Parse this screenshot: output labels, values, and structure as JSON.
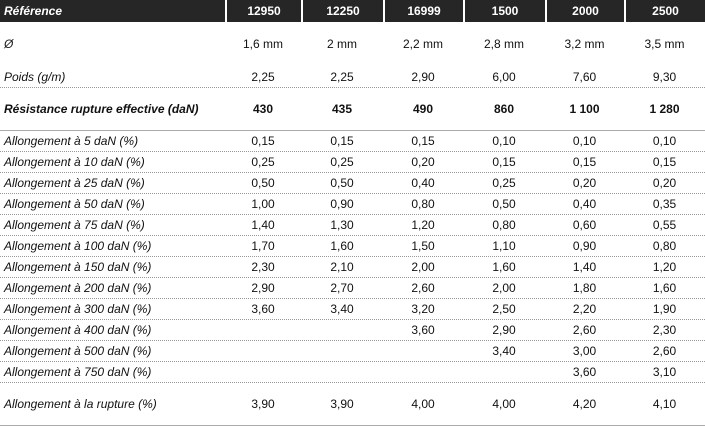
{
  "table": {
    "header": [
      "Référence",
      "12950",
      "12250",
      "16999",
      "1500",
      "2000",
      "2500"
    ],
    "rows": [
      {
        "label": "Ø",
        "values": [
          "1,6 mm",
          "2 mm",
          "2,2 mm",
          "2,8 mm",
          "3,2 mm",
          "3,5 mm"
        ]
      },
      {
        "label": "Poids (g/m)",
        "values": [
          "2,25",
          "2,25",
          "2,90",
          "6,00",
          "7,60",
          "9,30"
        ]
      },
      {
        "label": "Résistance rupture effective (daN)",
        "values": [
          "430",
          "435",
          "490",
          "860",
          "1 100",
          "1 280"
        ],
        "bold": true
      },
      {
        "label": "Allongement à 5 daN (%)",
        "values": [
          "0,15",
          "0,15",
          "0,15",
          "0,10",
          "0,10",
          "0,10"
        ]
      },
      {
        "label": "Allongement à 10 daN (%)",
        "values": [
          "0,25",
          "0,25",
          "0,20",
          "0,15",
          "0,15",
          "0,15"
        ]
      },
      {
        "label": "Allongement à 25 daN (%)",
        "values": [
          "0,50",
          "0,50",
          "0,40",
          "0,25",
          "0,20",
          "0,20"
        ]
      },
      {
        "label": "Allongement à 50 daN (%)",
        "values": [
          "1,00",
          "0,90",
          "0,80",
          "0,50",
          "0,40",
          "0,35"
        ]
      },
      {
        "label": "Allongement à 75 daN (%)",
        "values": [
          "1,40",
          "1,30",
          "1,20",
          "0,80",
          "0,60",
          "0,55"
        ]
      },
      {
        "label": "Allongement à 100 daN (%)",
        "values": [
          "1,70",
          "1,60",
          "1,50",
          "1,10",
          "0,90",
          "0,80"
        ]
      },
      {
        "label": "Allongement à 150 daN (%)",
        "values": [
          "2,30",
          "2,10",
          "2,00",
          "1,60",
          "1,40",
          "1,20"
        ]
      },
      {
        "label": "Allongement à 200 daN (%)",
        "values": [
          "2,90",
          "2,70",
          "2,60",
          "2,00",
          "1,80",
          "1,60"
        ]
      },
      {
        "label": "Allongement à 300 daN (%)",
        "values": [
          "3,60",
          "3,40",
          "3,20",
          "2,50",
          "2,20",
          "1,90"
        ]
      },
      {
        "label": "Allongement à 400 daN (%)",
        "values": [
          null,
          null,
          "3,60",
          "2,90",
          "2,60",
          "2,30"
        ]
      },
      {
        "label": "Allongement à 500 daN (%)",
        "values": [
          null,
          null,
          null,
          "3,40",
          "3,00",
          "2,60"
        ]
      },
      {
        "label": "Allongement à 750 daN (%)",
        "values": [
          null,
          null,
          null,
          null,
          "3,60",
          "3,10"
        ]
      },
      {
        "label": "Allongement à la rupture (%)",
        "values": [
          "3,90",
          "3,90",
          "4,00",
          "4,00",
          "4,20",
          "4,10"
        ]
      }
    ]
  }
}
